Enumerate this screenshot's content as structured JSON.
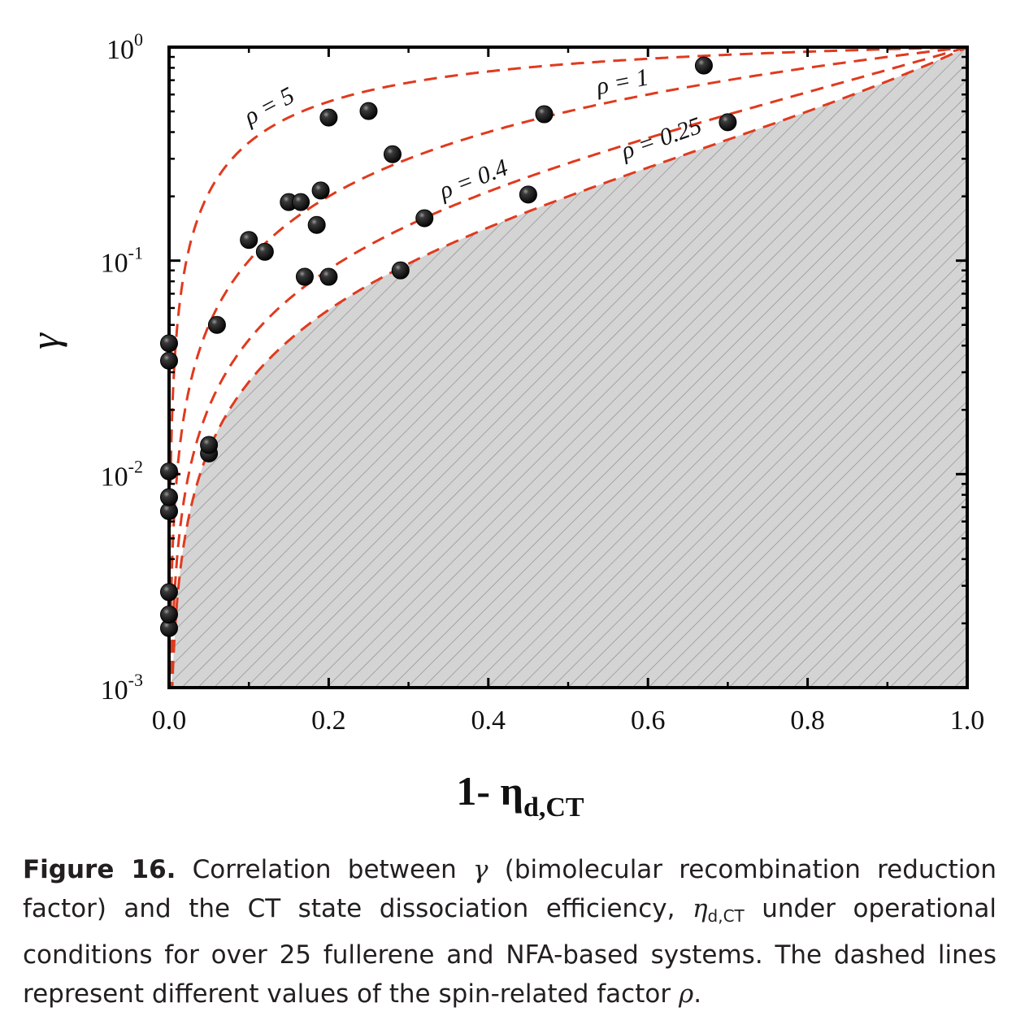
{
  "chart_data": {
    "type": "scatter",
    "xlabel": "1- η",
    "xlabel_sub": "d,CT",
    "ylabel": "γ",
    "xlim": [
      0.0,
      1.0
    ],
    "ylim": [
      0.001,
      1.0
    ],
    "y_scale": "log",
    "x_ticks": [
      "0.0",
      "0.2",
      "0.4",
      "0.6",
      "0.8",
      "1.0"
    ],
    "y_ticks": [
      {
        "base": "10",
        "exp": "0"
      },
      {
        "base": "10",
        "exp": "-1"
      },
      {
        "base": "10",
        "exp": "-2"
      },
      {
        "base": "10",
        "exp": "-3"
      }
    ],
    "shaded_region": "hatched grey region below ρ = 0.25",
    "curves": [
      {
        "label": "ρ = 5",
        "rho": 5,
        "style": "dashed",
        "color": "#e03a1e"
      },
      {
        "label": "ρ = 1",
        "rho": 1,
        "style": "dashed",
        "color": "#e03a1e"
      },
      {
        "label": "ρ = 0.4",
        "rho": 0.4,
        "style": "dashed",
        "color": "#e03a1e"
      },
      {
        "label": "ρ = 0.25",
        "rho": 0.25,
        "style": "dashed",
        "color": "#e03a1e"
      }
    ],
    "points": [
      {
        "x": 0.0,
        "y": 0.0019
      },
      {
        "x": 0.0,
        "y": 0.0022
      },
      {
        "x": 0.0,
        "y": 0.0028
      },
      {
        "x": 0.0,
        "y": 0.0067
      },
      {
        "x": 0.0,
        "y": 0.0078
      },
      {
        "x": 0.0,
        "y": 0.0103
      },
      {
        "x": 0.0,
        "y": 0.034
      },
      {
        "x": 0.0,
        "y": 0.041
      },
      {
        "x": 0.05,
        "y": 0.0125
      },
      {
        "x": 0.05,
        "y": 0.0137
      },
      {
        "x": 0.06,
        "y": 0.05
      },
      {
        "x": 0.1,
        "y": 0.125
      },
      {
        "x": 0.12,
        "y": 0.11
      },
      {
        "x": 0.15,
        "y": 0.188
      },
      {
        "x": 0.165,
        "y": 0.188
      },
      {
        "x": 0.17,
        "y": 0.084
      },
      {
        "x": 0.185,
        "y": 0.147
      },
      {
        "x": 0.19,
        "y": 0.213
      },
      {
        "x": 0.2,
        "y": 0.084
      },
      {
        "x": 0.2,
        "y": 0.468
      },
      {
        "x": 0.25,
        "y": 0.502
      },
      {
        "x": 0.28,
        "y": 0.315
      },
      {
        "x": 0.29,
        "y": 0.09
      },
      {
        "x": 0.32,
        "y": 0.158
      },
      {
        "x": 0.45,
        "y": 0.204
      },
      {
        "x": 0.47,
        "y": 0.485
      },
      {
        "x": 0.67,
        "y": 0.82
      },
      {
        "x": 0.7,
        "y": 0.445
      }
    ],
    "colors": {
      "curve": "#e03a1e",
      "shade": "#d4d4d4",
      "hatch": "#8a8a8a",
      "point": "#111111"
    }
  },
  "caption": {
    "label": "Figure 16.",
    "text_1": "Correlation between",
    "gamma": "γ",
    "text_2": "(bimolecular recombination reduction factor) and the CT state dissociation efficiency,",
    "eta": "η",
    "eta_sub": "d,CT",
    "text_3": "under operational conditions for over 25 fullerene and NFA-based systems. The dashed lines represent different values of the spin-related factor",
    "rho": "ρ",
    "text_4": "."
  }
}
